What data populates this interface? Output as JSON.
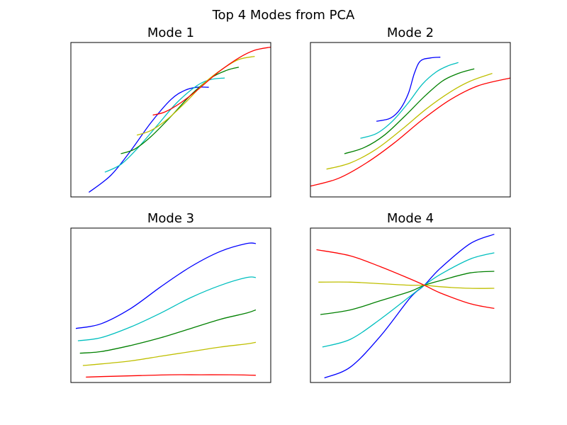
{
  "suptitle": "Top 4 Modes from PCA",
  "chart_data": [
    {
      "type": "line",
      "title": "Mode 1",
      "xlabel": "",
      "ylabel": "",
      "xticks": false,
      "yticks": false,
      "series": [
        {
          "color": "#0000ff",
          "points": [
            [
              0.09,
              0.97
            ],
            [
              0.2,
              0.86
            ],
            [
              0.3,
              0.7
            ],
            [
              0.4,
              0.52
            ],
            [
              0.5,
              0.37
            ],
            [
              0.57,
              0.31
            ],
            [
              0.63,
              0.29
            ],
            [
              0.69,
              0.29
            ]
          ]
        },
        {
          "color": "#00bfbf",
          "points": [
            [
              0.17,
              0.84
            ],
            [
              0.25,
              0.79
            ],
            [
              0.33,
              0.69
            ],
            [
              0.43,
              0.54
            ],
            [
              0.53,
              0.39
            ],
            [
              0.63,
              0.28
            ],
            [
              0.7,
              0.24
            ],
            [
              0.77,
              0.23
            ]
          ]
        },
        {
          "color": "#008000",
          "points": [
            [
              0.25,
              0.72
            ],
            [
              0.32,
              0.69
            ],
            [
              0.4,
              0.61
            ],
            [
              0.5,
              0.48
            ],
            [
              0.6,
              0.34
            ],
            [
              0.7,
              0.23
            ],
            [
              0.78,
              0.18
            ],
            [
              0.84,
              0.16
            ]
          ]
        },
        {
          "color": "#bfbf00",
          "points": [
            [
              0.33,
              0.6
            ],
            [
              0.4,
              0.57
            ],
            [
              0.48,
              0.5
            ],
            [
              0.58,
              0.38
            ],
            [
              0.67,
              0.26
            ],
            [
              0.76,
              0.17
            ],
            [
              0.84,
              0.11
            ],
            [
              0.92,
              0.09
            ]
          ]
        },
        {
          "color": "#ff0000",
          "points": [
            [
              0.41,
              0.47
            ],
            [
              0.47,
              0.45
            ],
            [
              0.55,
              0.39
            ],
            [
              0.64,
              0.3
            ],
            [
              0.74,
              0.19
            ],
            [
              0.84,
              0.1
            ],
            [
              0.92,
              0.05
            ],
            [
              1.0,
              0.03
            ]
          ]
        }
      ]
    },
    {
      "type": "line",
      "title": "Mode 2",
      "xlabel": "",
      "ylabel": "",
      "xticks": false,
      "yticks": false,
      "series": [
        {
          "color": "#0000ff",
          "points": [
            [
              0.33,
              0.51
            ],
            [
              0.4,
              0.49
            ],
            [
              0.45,
              0.43
            ],
            [
              0.49,
              0.33
            ],
            [
              0.52,
              0.2
            ],
            [
              0.55,
              0.12
            ],
            [
              0.6,
              0.1
            ],
            [
              0.65,
              0.095
            ]
          ]
        },
        {
          "color": "#00bfbf",
          "points": [
            [
              0.25,
              0.62
            ],
            [
              0.33,
              0.59
            ],
            [
              0.41,
              0.51
            ],
            [
              0.49,
              0.39
            ],
            [
              0.56,
              0.27
            ],
            [
              0.63,
              0.19
            ],
            [
              0.69,
              0.15
            ],
            [
              0.74,
              0.13
            ]
          ]
        },
        {
          "color": "#008000",
          "points": [
            [
              0.17,
              0.72
            ],
            [
              0.27,
              0.68
            ],
            [
              0.37,
              0.6
            ],
            [
              0.47,
              0.48
            ],
            [
              0.57,
              0.35
            ],
            [
              0.66,
              0.25
            ],
            [
              0.74,
              0.2
            ],
            [
              0.82,
              0.17
            ]
          ]
        },
        {
          "color": "#bfbf00",
          "points": [
            [
              0.08,
              0.82
            ],
            [
              0.2,
              0.78
            ],
            [
              0.33,
              0.69
            ],
            [
              0.46,
              0.56
            ],
            [
              0.58,
              0.43
            ],
            [
              0.7,
              0.32
            ],
            [
              0.8,
              0.25
            ],
            [
              0.91,
              0.2
            ]
          ]
        },
        {
          "color": "#ff0000",
          "points": [
            [
              0.0,
              0.93
            ],
            [
              0.14,
              0.88
            ],
            [
              0.28,
              0.78
            ],
            [
              0.42,
              0.65
            ],
            [
              0.56,
              0.5
            ],
            [
              0.7,
              0.37
            ],
            [
              0.84,
              0.28
            ],
            [
              1.0,
              0.23
            ]
          ]
        }
      ]
    },
    {
      "type": "line",
      "title": "Mode 3",
      "xlabel": "",
      "ylabel": "",
      "xticks": false,
      "yticks": false,
      "series": [
        {
          "color": "#0000ff",
          "points": [
            [
              0.025,
              0.65
            ],
            [
              0.15,
              0.62
            ],
            [
              0.3,
              0.52
            ],
            [
              0.45,
              0.38
            ],
            [
              0.6,
              0.25
            ],
            [
              0.75,
              0.15
            ],
            [
              0.88,
              0.1
            ],
            [
              0.925,
              0.1
            ]
          ]
        },
        {
          "color": "#00bfbf",
          "points": [
            [
              0.035,
              0.73
            ],
            [
              0.15,
              0.71
            ],
            [
              0.3,
              0.64
            ],
            [
              0.45,
              0.55
            ],
            [
              0.6,
              0.45
            ],
            [
              0.75,
              0.37
            ],
            [
              0.88,
              0.32
            ],
            [
              0.925,
              0.32
            ]
          ]
        },
        {
          "color": "#008000",
          "points": [
            [
              0.045,
              0.81
            ],
            [
              0.15,
              0.8
            ],
            [
              0.3,
              0.76
            ],
            [
              0.45,
              0.71
            ],
            [
              0.6,
              0.65
            ],
            [
              0.75,
              0.59
            ],
            [
              0.88,
              0.55
            ],
            [
              0.925,
              0.53
            ]
          ]
        },
        {
          "color": "#bfbf00",
          "points": [
            [
              0.06,
              0.89
            ],
            [
              0.15,
              0.88
            ],
            [
              0.3,
              0.86
            ],
            [
              0.45,
              0.83
            ],
            [
              0.6,
              0.8
            ],
            [
              0.75,
              0.77
            ],
            [
              0.88,
              0.75
            ],
            [
              0.925,
              0.74
            ]
          ]
        },
        {
          "color": "#ff0000",
          "points": [
            [
              0.075,
              0.965
            ],
            [
              0.2,
              0.96
            ],
            [
              0.35,
              0.955
            ],
            [
              0.5,
              0.95
            ],
            [
              0.65,
              0.95
            ],
            [
              0.8,
              0.95
            ],
            [
              0.925,
              0.953
            ]
          ]
        }
      ]
    },
    {
      "type": "line",
      "title": "Mode 4",
      "xlabel": "",
      "ylabel": "",
      "xticks": false,
      "yticks": false,
      "series": [
        {
          "color": "#0000ff",
          "points": [
            [
              0.07,
              0.97
            ],
            [
              0.2,
              0.9
            ],
            [
              0.35,
              0.7
            ],
            [
              0.5,
              0.45
            ],
            [
              0.57,
              0.37
            ],
            [
              0.65,
              0.26
            ],
            [
              0.8,
              0.1
            ],
            [
              0.92,
              0.04
            ]
          ]
        },
        {
          "color": "#00bfbf",
          "points": [
            [
              0.06,
              0.77
            ],
            [
              0.2,
              0.72
            ],
            [
              0.35,
              0.59
            ],
            [
              0.5,
              0.44
            ],
            [
              0.57,
              0.37
            ],
            [
              0.65,
              0.3
            ],
            [
              0.8,
              0.2
            ],
            [
              0.92,
              0.16
            ]
          ]
        },
        {
          "color": "#008000",
          "points": [
            [
              0.05,
              0.56
            ],
            [
              0.2,
              0.53
            ],
            [
              0.35,
              0.47
            ],
            [
              0.5,
              0.41
            ],
            [
              0.57,
              0.37
            ],
            [
              0.65,
              0.34
            ],
            [
              0.8,
              0.29
            ],
            [
              0.92,
              0.28
            ]
          ]
        },
        {
          "color": "#bfbf00",
          "points": [
            [
              0.04,
              0.35
            ],
            [
              0.2,
              0.35
            ],
            [
              0.35,
              0.36
            ],
            [
              0.5,
              0.37
            ],
            [
              0.57,
              0.37
            ],
            [
              0.65,
              0.38
            ],
            [
              0.8,
              0.39
            ],
            [
              0.92,
              0.39
            ]
          ]
        },
        {
          "color": "#ff0000",
          "points": [
            [
              0.03,
              0.14
            ],
            [
              0.2,
              0.18
            ],
            [
              0.35,
              0.25
            ],
            [
              0.5,
              0.33
            ],
            [
              0.57,
              0.37
            ],
            [
              0.65,
              0.42
            ],
            [
              0.8,
              0.49
            ],
            [
              0.92,
              0.52
            ]
          ]
        }
      ]
    }
  ]
}
